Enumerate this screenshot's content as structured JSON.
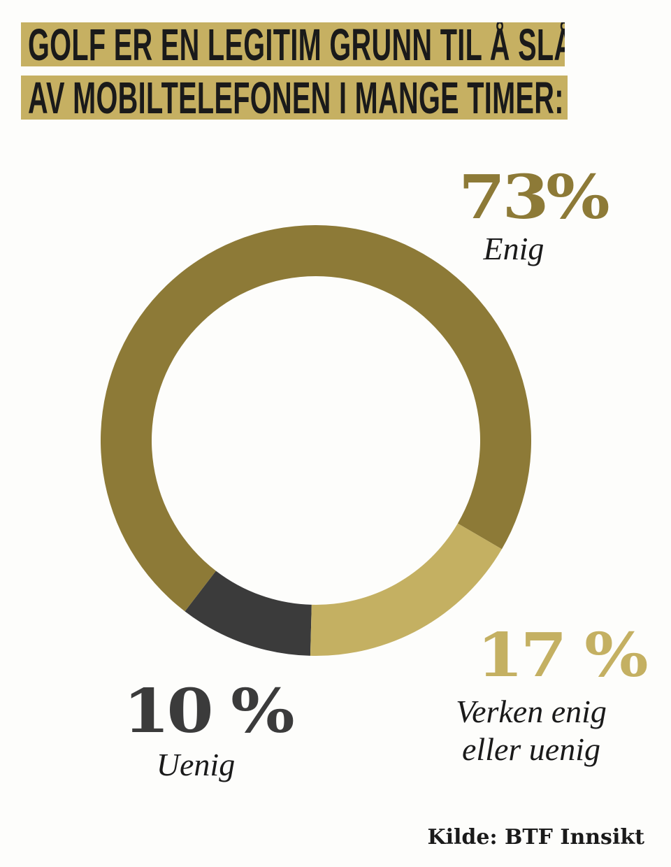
{
  "title": [
    "GOLF ER EN LEGITIM GRUNN TIL Å SLÅ",
    "AV MOBILTELEFONEN I MANGE TIMER:"
  ],
  "colors": {
    "title_bg": "#c6b062",
    "enig": "#8d7a37",
    "verken": "#c4b062",
    "uenig": "#3b3b3b",
    "center": "#fdfdfb"
  },
  "chart_data": {
    "type": "pie",
    "style": "donut",
    "slices": [
      {
        "label": "Enig",
        "value": 73,
        "display": "73%",
        "color": "#8d7a37"
      },
      {
        "label": "Verken enig eller uenig",
        "value": 17,
        "display": "17 %",
        "color": "#c4b062"
      },
      {
        "label": "Uenig",
        "value": 10,
        "display": "10 %",
        "color": "#3b3b3b"
      }
    ]
  },
  "labels": {
    "enig_pct": "73%",
    "enig": "Enig",
    "verken_pct": "17 %",
    "verken_1": "Verken enig",
    "verken_2": "eller uenig",
    "uenig_pct": "10 %",
    "uenig": "Uenig"
  },
  "source": "Kilde: BTF Innsikt"
}
